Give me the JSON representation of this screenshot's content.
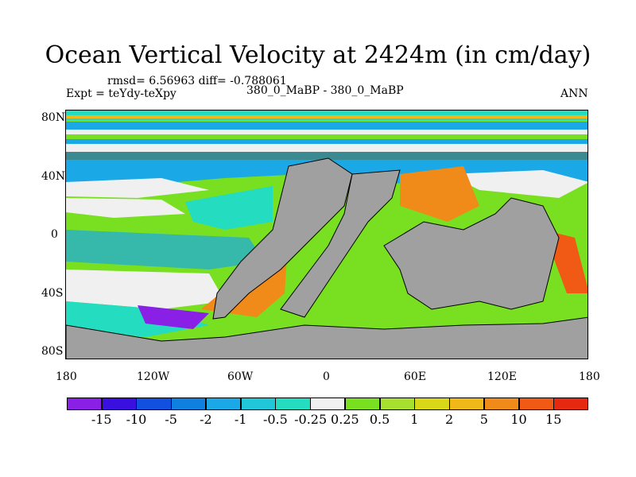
{
  "title": "Ocean Vertical Velocity at 2424m (in cm/day)",
  "stats": "rmsd= 6.56963 diff= -0.788061",
  "experiment": "Expt = teYdy-teXpy",
  "case_label": "380_0_MaBP - 380_0_MaBP",
  "season": "ANN",
  "lat_labels": [
    "80N",
    "40N",
    "0",
    "40S",
    "80S"
  ],
  "lon_labels": [
    "180",
    "120W",
    "60W",
    "0",
    "60E",
    "120E",
    "180"
  ],
  "colorbar": {
    "labels": [
      "-15",
      "-10",
      "-5",
      "-2",
      "-1",
      "-0.5",
      "-0.25",
      "0.25",
      "0.5",
      "1",
      "2",
      "5",
      "10",
      "15"
    ],
    "colors": [
      "#8a1fe6",
      "#3a10e0",
      "#1250e0",
      "#0f7fe0",
      "#1aa8e6",
      "#20c7d8",
      "#24dcc0",
      "#f0f0f0",
      "#78e020",
      "#a8e030",
      "#d8d818",
      "#f0b818",
      "#f08a18",
      "#f05a14",
      "#e62810"
    ]
  },
  "map": {
    "land_color": "#a0a0a0"
  }
}
